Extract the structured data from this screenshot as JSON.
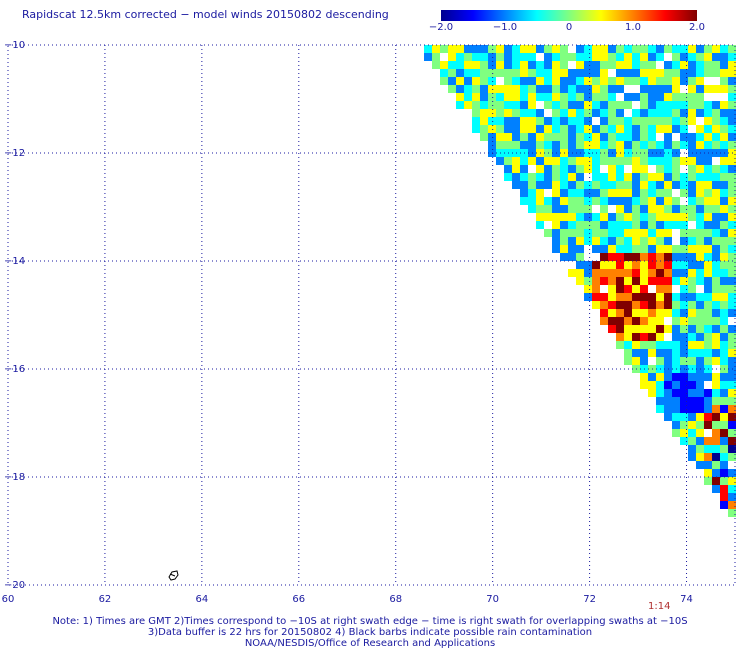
{
  "title": "Rapidscat 12.5km corrected − model winds 20150802 descending",
  "colorbar": {
    "ticks": [
      "−2.0",
      "−1.0",
      "0",
      "1.0",
      "2.0"
    ],
    "tick_values": [
      -2.0,
      -1.0,
      0,
      1.0,
      2.0
    ],
    "range": [
      -2.0,
      2.0
    ],
    "colors": [
      "#00008f",
      "#0000ff",
      "#0080ff",
      "#00ffff",
      "#80ff80",
      "#ffff00",
      "#ff8000",
      "#ff0000",
      "#800000"
    ]
  },
  "map": {
    "lon_range": [
      60,
      75
    ],
    "lat_range": [
      -20,
      -10
    ],
    "lon_ticks": [
      "60",
      "62",
      "64",
      "66",
      "68",
      "70",
      "72",
      "74"
    ],
    "lon_tick_values": [
      60,
      62,
      64,
      66,
      68,
      70,
      72,
      74
    ],
    "lat_ticks": [
      "−10",
      "−12",
      "−14",
      "−16",
      "−18",
      "−20"
    ],
    "lat_tick_values": [
      -10,
      -12,
      -14,
      -16,
      -18,
      -20
    ],
    "gridlines": "dotted",
    "land_feature": "island-outline-icon"
  },
  "time_label": "1:14",
  "notes": [
    "Note: 1) Times are GMT 2)Times correspond to −10S at right swath edge − time is right swath for overlapping swaths at −10S",
    "3)Data buffer is 22 hrs for 20150802 4) Black barbs indicate possible rain contamination",
    "NOAA/NESDIS/Office of Research and Applications"
  ]
}
